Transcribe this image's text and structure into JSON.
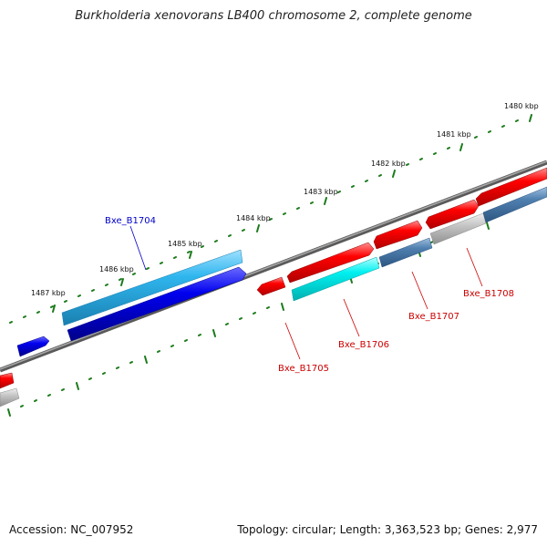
{
  "title": "Burkholderia xenovorans LB400 chromosome 2, complete genome",
  "footer": {
    "accession": "Accession: NC_007952",
    "info": "Topology: circular; Length: 3,363,523 bp; Genes: 2,977"
  },
  "colors": {
    "backbone": "#808080",
    "tick": "#1a7a1a",
    "forward_gene": "#ff0000",
    "forward_gene_light": "#ff8080",
    "reverse_gene": "#0000dd",
    "cds_light_blue": "#2fb6ee",
    "cyan_gene": "#00e5e5",
    "steel_blue": "#4a7aaa",
    "gray_gene": "#b8b8b8",
    "label_blue": "#0000cc",
    "label_red": "#cc0000"
  },
  "kbp_ticks": [
    {
      "position_kbp": 1480,
      "label": "1480 kbp"
    },
    {
      "position_kbp": 1481,
      "label": "1481 kbp"
    },
    {
      "position_kbp": 1482,
      "label": "1482 kbp"
    },
    {
      "position_kbp": 1483,
      "label": "1483 kbp"
    },
    {
      "position_kbp": 1484,
      "label": "1484 kbp"
    },
    {
      "position_kbp": 1485,
      "label": "1485 kbp"
    },
    {
      "position_kbp": 1486,
      "label": "1486 kbp"
    },
    {
      "position_kbp": 1487,
      "label": "1487 kbp"
    }
  ],
  "genes": [
    {
      "id": "Bxe_B1704",
      "strand": "outer",
      "labeled": true
    },
    {
      "id": "Bxe_B1705",
      "strand": "inner",
      "labeled": true
    },
    {
      "id": "Bxe_B1706",
      "strand": "inner",
      "labeled": true
    },
    {
      "id": "Bxe_B1707",
      "strand": "inner",
      "labeled": true
    },
    {
      "id": "Bxe_B1708",
      "strand": "inner",
      "labeled": true
    }
  ]
}
